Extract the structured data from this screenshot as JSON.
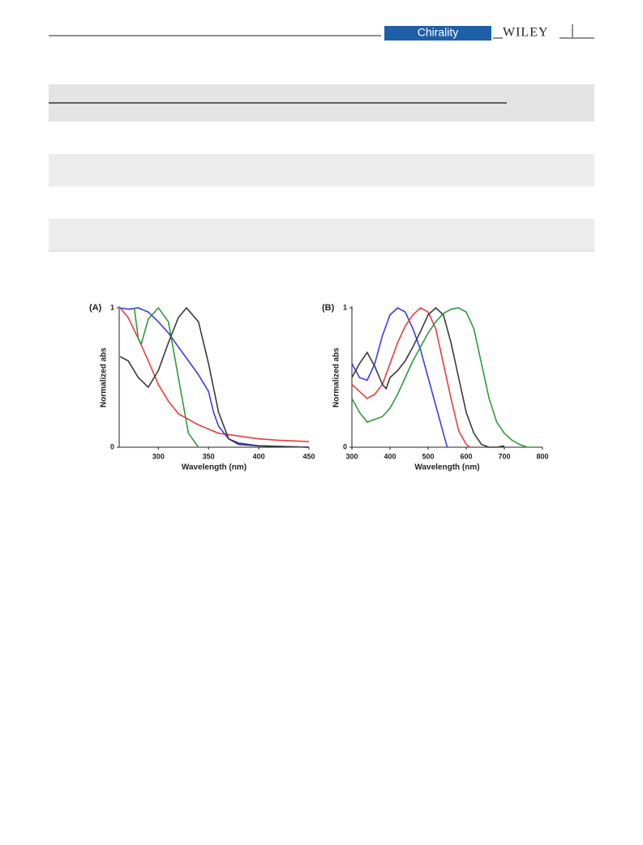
{
  "header": {
    "journal": "Chirality",
    "publisher": "WILEY"
  },
  "chart_data": [
    {
      "type": "line",
      "panel_label": "(A)",
      "xlabel": "Wavelength (nm)",
      "ylabel": "Normalized abs",
      "xlim": [
        261,
        450
      ],
      "ylim": [
        0,
        1
      ],
      "xticks": [
        300,
        350,
        400,
        450
      ],
      "yticks": [
        0,
        1
      ],
      "series": [
        {
          "color": "#ee3b3b",
          "x": [
            262,
            270,
            280,
            290,
            300,
            310,
            320,
            330,
            340,
            350,
            360,
            380,
            400,
            420,
            450
          ],
          "values": [
            1.0,
            0.93,
            0.78,
            0.62,
            0.45,
            0.33,
            0.24,
            0.2,
            0.16,
            0.13,
            0.1,
            0.08,
            0.06,
            0.05,
            0.04
          ]
        },
        {
          "color": "#3b3bee",
          "x": [
            262,
            270,
            280,
            290,
            300,
            310,
            320,
            330,
            340,
            350,
            355,
            360,
            370,
            380,
            400,
            450
          ],
          "values": [
            1.0,
            0.99,
            1.0,
            0.97,
            0.9,
            0.82,
            0.72,
            0.62,
            0.52,
            0.4,
            0.25,
            0.15,
            0.06,
            0.03,
            0.01,
            0
          ]
        },
        {
          "color": "#2e9b3a",
          "x": [
            276,
            280,
            283,
            290,
            300,
            310,
            320,
            330,
            340
          ],
          "values": [
            1.0,
            0.78,
            0.74,
            0.92,
            1.0,
            0.9,
            0.5,
            0.1,
            0
          ]
        },
        {
          "color": "#3a3a3a",
          "x": [
            262,
            270,
            280,
            290,
            300,
            310,
            320,
            328,
            340,
            350,
            360,
            370,
            380,
            400,
            450
          ],
          "values": [
            0.65,
            0.62,
            0.5,
            0.43,
            0.55,
            0.75,
            0.93,
            1.0,
            0.9,
            0.6,
            0.25,
            0.06,
            0.02,
            0.01,
            0
          ]
        }
      ]
    },
    {
      "type": "line",
      "panel_label": "(B)",
      "xlabel": "Wavelength (nm)",
      "ylabel": "Normalized abs",
      "xlim": [
        300,
        800
      ],
      "ylim": [
        0,
        1
      ],
      "xticks": [
        300,
        400,
        500,
        600,
        700,
        800
      ],
      "yticks": [
        0,
        1
      ],
      "series": [
        {
          "color": "#3b3bee",
          "x": [
            300,
            320,
            340,
            360,
            380,
            400,
            420,
            440,
            460,
            480,
            500,
            520,
            540,
            550
          ],
          "values": [
            0.6,
            0.5,
            0.48,
            0.6,
            0.8,
            0.95,
            1.0,
            0.97,
            0.85,
            0.7,
            0.5,
            0.3,
            0.1,
            0
          ]
        },
        {
          "color": "#ee3b3b",
          "x": [
            300,
            320,
            340,
            360,
            380,
            400,
            420,
            440,
            460,
            480,
            500,
            520,
            540,
            560,
            580,
            600,
            610
          ],
          "values": [
            0.45,
            0.4,
            0.35,
            0.38,
            0.45,
            0.6,
            0.75,
            0.87,
            0.95,
            1.0,
            0.97,
            0.85,
            0.6,
            0.35,
            0.12,
            0.02,
            0
          ]
        },
        {
          "color": "#3a3a3a",
          "x": [
            300,
            320,
            340,
            360,
            380,
            390,
            400,
            420,
            440,
            460,
            480,
            500,
            520,
            540,
            560,
            580,
            600,
            620,
            640,
            660,
            680,
            700
          ],
          "values": [
            0.5,
            0.6,
            0.68,
            0.58,
            0.45,
            0.42,
            0.5,
            0.55,
            0.62,
            0.72,
            0.83,
            0.95,
            1.0,
            0.95,
            0.75,
            0.5,
            0.25,
            0.1,
            0.02,
            0,
            0,
            0.01
          ]
        },
        {
          "color": "#2e9b3a",
          "x": [
            300,
            320,
            340,
            360,
            380,
            400,
            420,
            440,
            460,
            480,
            500,
            520,
            540,
            560,
            580,
            600,
            620,
            640,
            660,
            680,
            700,
            720,
            740,
            760,
            780
          ],
          "values": [
            0.35,
            0.25,
            0.18,
            0.2,
            0.22,
            0.28,
            0.38,
            0.5,
            0.62,
            0.72,
            0.82,
            0.9,
            0.96,
            0.99,
            1.0,
            0.97,
            0.85,
            0.6,
            0.35,
            0.18,
            0.1,
            0.05,
            0.02,
            0,
            0
          ]
        }
      ]
    }
  ]
}
